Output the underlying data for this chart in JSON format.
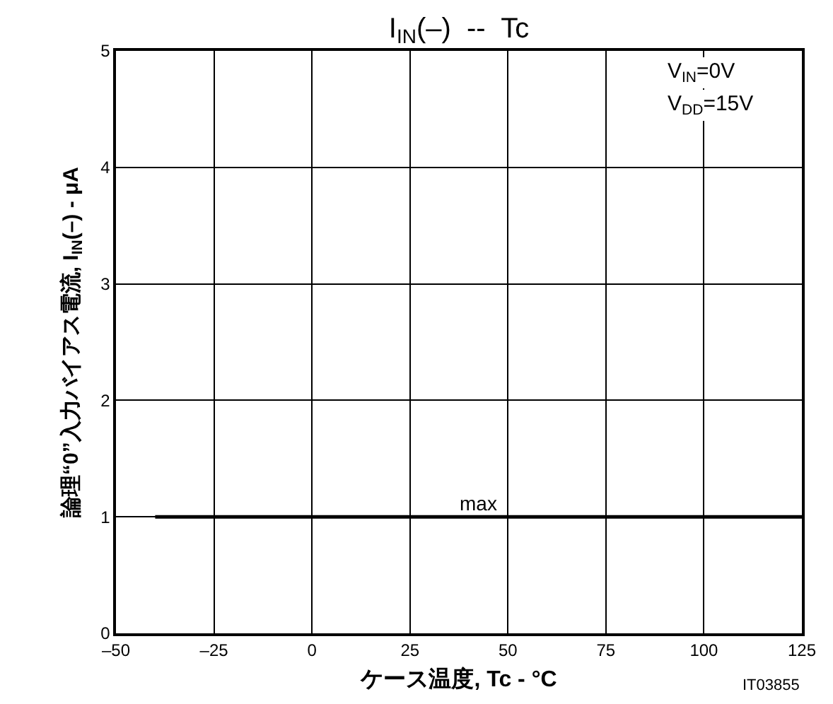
{
  "chart_data": {
    "type": "line",
    "title": "I$_{IN}$(–)  --  Tc",
    "xlabel": "ケース温度, Tc - °C",
    "ylabel": "論理“0”入力バイアス電流, I$_{IN}$(–) - μA",
    "x": [
      -40,
      125
    ],
    "series": [
      {
        "name": "max",
        "color": "#000000",
        "values": [
          1,
          1
        ]
      }
    ],
    "xlim": [
      -50,
      125
    ],
    "xticks": [
      {
        "value": -50,
        "label": "–50"
      },
      {
        "value": -25,
        "label": "–25"
      },
      0,
      25,
      50,
      75,
      100,
      125
    ],
    "ylim": [
      0,
      5
    ],
    "yticks": [
      0,
      1,
      2,
      3,
      4,
      5
    ],
    "grid": true,
    "legend": false,
    "marker": "none",
    "line_style": "solid",
    "annotations": [
      "V$_{IN}$=0V",
      "V$_{DD}$=15V",
      "IT03855"
    ]
  }
}
